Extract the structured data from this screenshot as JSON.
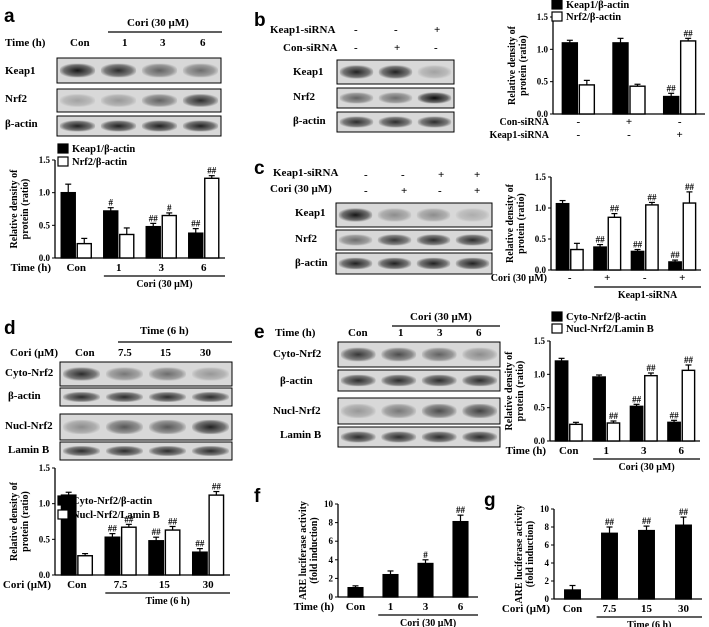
{
  "panels": {
    "a": {
      "label": "a",
      "cond_header": "Cori (30 μM)",
      "time_label": "Time (h)",
      "lanes": [
        "Con",
        "1",
        "3",
        "6"
      ],
      "blots": [
        "Keap1",
        "Nrf2",
        "β-actin"
      ]
    },
    "b": {
      "label": "b",
      "rows": [
        {
          "name": "Keap1-siRNA",
          "signs": [
            "-",
            "-",
            "+"
          ]
        },
        {
          "name": "Con-siRNA",
          "signs": [
            "-",
            "+",
            "-"
          ]
        }
      ],
      "blots": [
        "Keap1",
        "Nrf2",
        "β-actin"
      ]
    },
    "c": {
      "label": "c",
      "rows": [
        {
          "name": "Keap1-siRNA",
          "signs": [
            "-",
            "-",
            "+",
            "+"
          ]
        },
        {
          "name": "Cori (30 μM)",
          "signs": [
            "-",
            "+",
            "-",
            "+"
          ]
        }
      ],
      "blots": [
        "Keap1",
        "Nrf2",
        "β-actin"
      ]
    },
    "d": {
      "label": "d",
      "cond_header": "Time (6 h)",
      "conc_label": "Cori (μM)",
      "lanes": [
        "Con",
        "7.5",
        "15",
        "30"
      ],
      "blots": [
        "Cyto-Nrf2",
        "β-actin",
        "Nucl-Nrf2",
        "Lamin B"
      ]
    },
    "e": {
      "label": "e",
      "cond_header": "Cori (30 μM)",
      "time_label": "Time (h)",
      "lanes": [
        "Con",
        "1",
        "3",
        "6"
      ],
      "blots": [
        "Cyto-Nrf2",
        "β-actin",
        "Nucl-Nrf2",
        "Lamin B"
      ]
    },
    "f": {
      "label": "f"
    },
    "g": {
      "label": "g"
    }
  },
  "chart_data": [
    {
      "id": "a",
      "type": "bar",
      "ylabel": "Relative density of protein (ratio)",
      "ylim": [
        0,
        1.5
      ],
      "yticks": [
        "0.0",
        "0.5",
        "1.0",
        "1.5"
      ],
      "xprefix": "Time (h)",
      "categories": [
        "Con",
        "1",
        "3",
        "6"
      ],
      "xgroup": "Cori (30 μM)",
      "series": [
        {
          "name": "Keap1/β-actin",
          "fill": "#000000",
          "values": [
            1.0,
            0.72,
            0.48,
            0.38
          ],
          "err": [
            0.13,
            0.05,
            0.05,
            0.07
          ],
          "sig": [
            "",
            "#",
            "##",
            "##"
          ]
        },
        {
          "name": "Nrf2/β-actin",
          "fill": "#ffffff",
          "values": [
            0.22,
            0.36,
            0.65,
            1.22
          ],
          "err": [
            0.08,
            0.1,
            0.04,
            0.04
          ],
          "sig": [
            "",
            "",
            "#",
            "##"
          ]
        }
      ]
    },
    {
      "id": "b",
      "type": "bar",
      "ylabel": "Relative density of protein (ratio)",
      "ylim": [
        0,
        1.5
      ],
      "yticks": [
        "0.0",
        "0.5",
        "1.0",
        "1.5"
      ],
      "xrows": [
        {
          "name": "Con-siRNA",
          "signs": [
            "-",
            "+",
            "-"
          ]
        },
        {
          "name": "Keap1-siRNA",
          "signs": [
            "-",
            "-",
            "+"
          ]
        }
      ],
      "series": [
        {
          "name": "Keap1/β-actin",
          "fill": "#000000",
          "values": [
            1.1,
            1.1,
            0.27
          ],
          "err": [
            0.04,
            0.07,
            0.05
          ],
          "sig": [
            "",
            "",
            "##"
          ]
        },
        {
          "name": "Nrf2/β-actin",
          "fill": "#ffffff",
          "values": [
            0.45,
            0.43,
            1.13
          ],
          "err": [
            0.07,
            0.03,
            0.04
          ],
          "sig": [
            "",
            "",
            "##"
          ]
        }
      ]
    },
    {
      "id": "c",
      "type": "bar",
      "ylabel": "Relative density of protein (ratio)",
      "ylim": [
        0,
        1.5
      ],
      "yticks": [
        "0.0",
        "0.5",
        "1.0",
        "1.5"
      ],
      "xrows": [
        {
          "name": "Cori (30 μM)",
          "signs": [
            "-",
            "+",
            "-",
            "+"
          ]
        }
      ],
      "xgroup": "Keap1-siRNA",
      "series": [
        {
          "name": "Keap1/β-actin",
          "fill": "#000000",
          "values": [
            1.07,
            0.37,
            0.3,
            0.13
          ],
          "err": [
            0.05,
            0.04,
            0.03,
            0.03
          ],
          "sig": [
            "",
            "##",
            "##",
            "##"
          ]
        },
        {
          "name": "Nrf2/β-actin",
          "fill": "#ffffff",
          "values": [
            0.33,
            0.85,
            1.05,
            1.08
          ],
          "err": [
            0.1,
            0.06,
            0.04,
            0.18
          ],
          "sig": [
            "",
            "##",
            "##",
            "##"
          ]
        }
      ]
    },
    {
      "id": "d",
      "type": "bar",
      "ylabel": "Relative density of protein (ratio)",
      "ylim": [
        0,
        1.5
      ],
      "yticks": [
        "0.0",
        "0.5",
        "1.0",
        "1.5"
      ],
      "xprefix": "Cori (μM)",
      "categories": [
        "Con",
        "7.5",
        "15",
        "30"
      ],
      "xgroup": "Time (6 h)",
      "series": [
        {
          "name": "Cyto-Nrf2/β-actin",
          "fill": "#000000",
          "values": [
            1.12,
            0.53,
            0.48,
            0.32
          ],
          "err": [
            0.04,
            0.05,
            0.05,
            0.05
          ],
          "sig": [
            "",
            "##",
            "##",
            "##"
          ]
        },
        {
          "name": "Nucl-Nrf2/Lamin B",
          "fill": "#ffffff",
          "values": [
            0.27,
            0.67,
            0.63,
            1.12
          ],
          "err": [
            0.03,
            0.04,
            0.05,
            0.05
          ],
          "sig": [
            "",
            "##",
            "##",
            "##"
          ]
        }
      ]
    },
    {
      "id": "e",
      "type": "bar",
      "ylabel": "Relative density of protein (ratio)",
      "ylim": [
        0,
        1.5
      ],
      "yticks": [
        "0.0",
        "0.5",
        "1.0",
        "1.5"
      ],
      "xprefix": "Time (h)",
      "categories": [
        "Con",
        "1",
        "3",
        "6"
      ],
      "xgroup": "Cori (30 μM)",
      "series": [
        {
          "name": "Cyto-Nrf2/β-actin",
          "fill": "#000000",
          "values": [
            1.2,
            0.96,
            0.52,
            0.28
          ],
          "err": [
            0.04,
            0.03,
            0.03,
            0.03
          ],
          "sig": [
            "",
            "",
            "##",
            "##"
          ]
        },
        {
          "name": "Nucl-Nrf2/Lamin B",
          "fill": "#ffffff",
          "values": [
            0.25,
            0.27,
            0.98,
            1.06
          ],
          "err": [
            0.03,
            0.03,
            0.04,
            0.08
          ],
          "sig": [
            "",
            "##",
            "##",
            "##"
          ]
        }
      ]
    },
    {
      "id": "f",
      "type": "bar",
      "ylabel": "ARE luciferase activity (fold induction)",
      "ylim": [
        0,
        10
      ],
      "yticks": [
        "0",
        "2",
        "4",
        "6",
        "8",
        "10"
      ],
      "xprefix": "Time (h)",
      "categories": [
        "Con",
        "1",
        "3",
        "6"
      ],
      "xgroup": "Cori (30 μM)",
      "series": [
        {
          "fill": "#000000",
          "values": [
            1.0,
            2.4,
            3.6,
            8.1
          ],
          "err": [
            0.2,
            0.4,
            0.4,
            0.7
          ],
          "sig": [
            "",
            "",
            "#",
            "##"
          ]
        }
      ]
    },
    {
      "id": "g",
      "type": "bar",
      "ylabel": "ARE luciferase activity (fold induction)",
      "ylim": [
        0,
        10
      ],
      "yticks": [
        "0",
        "2",
        "4",
        "6",
        "8",
        "10"
      ],
      "xprefix": "Cori (μM)",
      "categories": [
        "Con",
        "7.5",
        "15",
        "30"
      ],
      "xgroup": "Time (6 h)",
      "series": [
        {
          "fill": "#000000",
          "values": [
            1.0,
            7.3,
            7.6,
            8.2
          ],
          "err": [
            0.5,
            0.7,
            0.5,
            0.9
          ],
          "sig": [
            "",
            "##",
            "##",
            "##"
          ]
        }
      ]
    }
  ]
}
